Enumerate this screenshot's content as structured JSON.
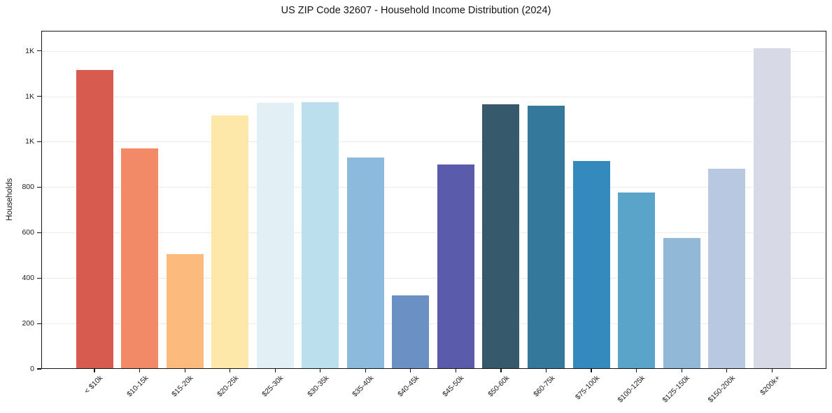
{
  "chart_data": {
    "type": "bar",
    "title": "US ZIP Code 32607 - Household Income Distribution (2024)",
    "xlabel": "",
    "ylabel": "Households",
    "categories": [
      "< $10k",
      "$10-15k",
      "$15-20k",
      "$20-25k",
      "$25-30k",
      "$30-35k",
      "$35-40k",
      "$40-45k",
      "$45-50k",
      "$50-60k",
      "$60-75k",
      "$75-100k",
      "$100-125k",
      "$125-150k",
      "$150-200k",
      "$200k+"
    ],
    "values": [
      1315,
      970,
      505,
      1115,
      1170,
      1175,
      930,
      325,
      900,
      1165,
      1160,
      915,
      775,
      575,
      880,
      1410
    ],
    "bar_colors": [
      "#d85b50",
      "#f28a67",
      "#fcba7d",
      "#fde8a9",
      "#e2f0f6",
      "#bbdfec",
      "#8cbadc",
      "#6b90c3",
      "#5a5cab",
      "#36596c",
      "#34799c",
      "#358abd",
      "#5ba4c9",
      "#92b8d8",
      "#b7c8e0",
      "#d7d9e6"
    ],
    "ylim": [
      0,
      1488
    ],
    "yticks": {
      "values": [
        0,
        200,
        400,
        600,
        800,
        1000,
        1200,
        1400
      ],
      "labels": [
        "0",
        "200",
        "400",
        "600",
        "800",
        "1K",
        "1K",
        "1K"
      ]
    },
    "grid": "horizontal",
    "gridline_color": "#ebebee",
    "legend": "none",
    "background": "#ffffff"
  }
}
